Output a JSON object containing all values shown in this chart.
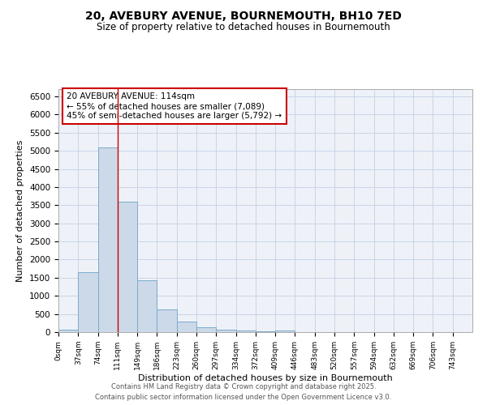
{
  "title_line1": "20, AVEBURY AVENUE, BOURNEMOUTH, BH10 7ED",
  "title_line2": "Size of property relative to detached houses in Bournemouth",
  "xlabel": "Distribution of detached houses by size in Bournemouth",
  "ylabel": "Number of detached properties",
  "bin_edges": [
    0,
    37,
    74,
    111,
    148,
    185,
    222,
    259,
    296,
    333,
    370,
    407,
    444,
    481,
    518,
    555,
    592,
    629,
    666,
    703,
    740
  ],
  "bin_labels": [
    "0sqm",
    "37sqm",
    "74sqm",
    "111sqm",
    "149sqm",
    "186sqm",
    "223sqm",
    "260sqm",
    "297sqm",
    "334sqm",
    "372sqm",
    "409sqm",
    "446sqm",
    "483sqm",
    "520sqm",
    "557sqm",
    "594sqm",
    "632sqm",
    "669sqm",
    "706sqm",
    "743sqm"
  ],
  "bar_heights": [
    60,
    1650,
    5100,
    3600,
    1420,
    620,
    300,
    140,
    75,
    40,
    30,
    35,
    0,
    0,
    0,
    0,
    0,
    0,
    0,
    0
  ],
  "bar_color": "#ccd9e8",
  "bar_edge_color": "#7aaBcc",
  "vline_x": 111,
  "vline_color": "#cc0000",
  "ylim": [
    0,
    6700
  ],
  "yticks": [
    0,
    500,
    1000,
    1500,
    2000,
    2500,
    3000,
    3500,
    4000,
    4500,
    5000,
    5500,
    6000,
    6500
  ],
  "annotation_title": "20 AVEBURY AVENUE: 114sqm",
  "annotation_line1": "← 55% of detached houses are smaller (7,089)",
  "annotation_line2": "45% of semi-detached houses are larger (5,792) →",
  "annotation_box_color": "#cc0000",
  "grid_color": "#c8d4e8",
  "background_color": "#eef2f8",
  "footer_line1": "Contains HM Land Registry data © Crown copyright and database right 2025.",
  "footer_line2": "Contains public sector information licensed under the Open Government Licence v3.0."
}
